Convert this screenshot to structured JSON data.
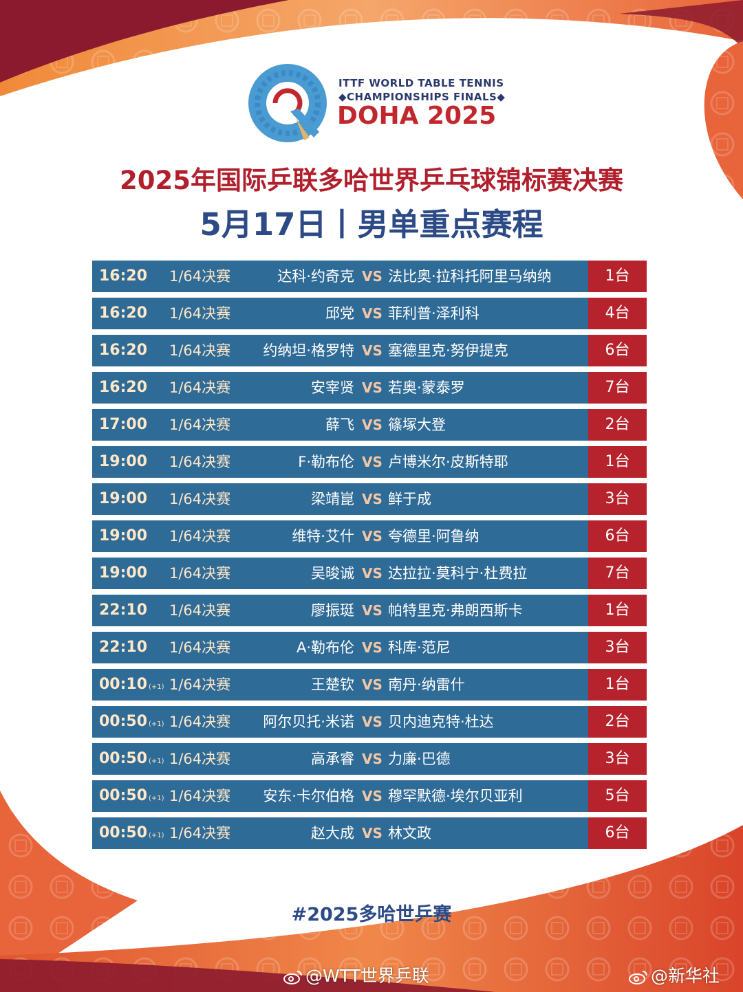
{
  "colors": {
    "accent_red": "#b01f2c",
    "navy": "#2c4a86",
    "row_blue": "#2f6b97",
    "table_red": "#b7232c",
    "time_text": "#ffe7c7",
    "orange": "#e8643a"
  },
  "logo": {
    "line1": "ITTF WORLD TABLE TENNIS",
    "line2": "◆CHAMPIONSHIPS FINALS◆",
    "line3": "DOHA 2025",
    "icon": "doha-q-emblem-icon"
  },
  "title": "2025年国际乒联多哈世界乒乓球锦标赛决赛",
  "subtitle": "5月17日丨男单重点赛程",
  "matches": [
    {
      "time": "16:20",
      "next_day": "",
      "round": "1/64决赛",
      "p1": "达科·约奇克",
      "vs": "VS",
      "p2": "法比奥·拉科托阿里马纳纳",
      "table": "1台"
    },
    {
      "time": "16:20",
      "next_day": "",
      "round": "1/64决赛",
      "p1": "邱党",
      "vs": "VS",
      "p2": "菲利普·泽利科",
      "table": "4台"
    },
    {
      "time": "16:20",
      "next_day": "",
      "round": "1/64决赛",
      "p1": "约纳坦·格罗特",
      "vs": "VS",
      "p2": "塞德里克·努伊提克",
      "table": "6台"
    },
    {
      "time": "16:20",
      "next_day": "",
      "round": "1/64决赛",
      "p1": "安宰贤",
      "vs": "VS",
      "p2": "若奥·蒙泰罗",
      "table": "7台"
    },
    {
      "time": "17:00",
      "next_day": "",
      "round": "1/64决赛",
      "p1": "薛飞",
      "vs": "VS",
      "p2": "篠塚大登",
      "table": "2台"
    },
    {
      "time": "19:00",
      "next_day": "",
      "round": "1/64决赛",
      "p1": "F·勒布伦",
      "vs": "VS",
      "p2": "卢博米尔·皮斯特耶",
      "table": "1台"
    },
    {
      "time": "19:00",
      "next_day": "",
      "round": "1/64决赛",
      "p1": "梁靖崑",
      "vs": "VS",
      "p2": "鲜于成",
      "table": "3台"
    },
    {
      "time": "19:00",
      "next_day": "",
      "round": "1/64决赛",
      "p1": "维特·艾什",
      "vs": "VS",
      "p2": "夸德里·阿鲁纳",
      "table": "6台"
    },
    {
      "time": "19:00",
      "next_day": "",
      "round": "1/64决赛",
      "p1": "吴晙诚",
      "vs": "VS",
      "p2": "达拉拉·莫科宁·杜费拉",
      "table": "7台"
    },
    {
      "time": "22:10",
      "next_day": "",
      "round": "1/64决赛",
      "p1": "廖振珽",
      "vs": "VS",
      "p2": "帕特里克·弗朗西斯卡",
      "table": "1台"
    },
    {
      "time": "22:10",
      "next_day": "",
      "round": "1/64决赛",
      "p1": "A·勒布伦",
      "vs": "VS",
      "p2": "科库·范尼",
      "table": "3台"
    },
    {
      "time": "00:10",
      "next_day": "(+1)",
      "round": "1/64决赛",
      "p1": "王楚钦",
      "vs": "VS",
      "p2": "南丹·纳雷什",
      "table": "1台"
    },
    {
      "time": "00:50",
      "next_day": "(+1)",
      "round": "1/64决赛",
      "p1": "阿尔贝托·米诺",
      "vs": "VS",
      "p2": "贝内迪克特·杜达",
      "table": "2台"
    },
    {
      "time": "00:50",
      "next_day": "(+1)",
      "round": "1/64决赛",
      "p1": "高承睿",
      "vs": "VS",
      "p2": "力廉·巴德",
      "table": "3台"
    },
    {
      "time": "00:50",
      "next_day": "(+1)",
      "round": "1/64决赛",
      "p1": "安东·卡尔伯格",
      "vs": "VS",
      "p2": "穆罕默德·埃尔贝亚利",
      "table": "5台"
    },
    {
      "time": "00:50",
      "next_day": "(+1)",
      "round": "1/64决赛",
      "p1": "赵大成",
      "vs": "VS",
      "p2": "林文政",
      "table": "6台"
    }
  ],
  "hashtag": "#2025多哈世乒赛",
  "watermarks": [
    {
      "icon": "weibo-icon",
      "text": "@WTT世界乒联"
    },
    {
      "icon": "weibo-icon",
      "text": "@新华社"
    }
  ]
}
